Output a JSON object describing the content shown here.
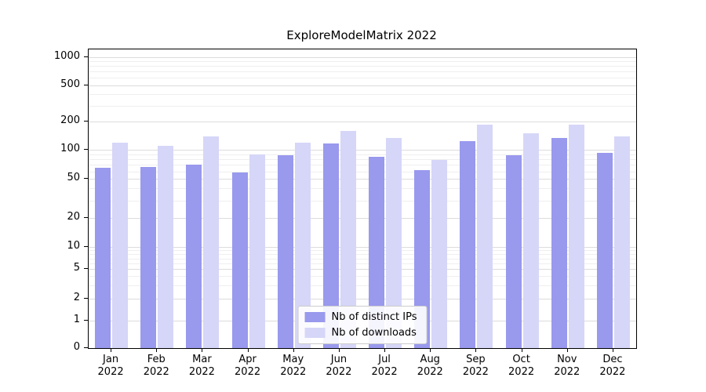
{
  "chart_data": {
    "type": "bar",
    "title": "ExploreModelMatrix 2022",
    "categories": [
      "Jan",
      "Feb",
      "Mar",
      "Apr",
      "May",
      "Jun",
      "Jul",
      "Aug",
      "Sep",
      "Oct",
      "Nov",
      "Dec"
    ],
    "x_tick_second_line": "2022",
    "series": [
      {
        "name": "Nb of distinct IPs",
        "color": "#9999ee",
        "values": [
          65,
          66,
          70,
          58,
          88,
          118,
          85,
          62,
          125,
          88,
          135,
          93
        ]
      },
      {
        "name": "Nb of downloads",
        "color": "#d6d6f8",
        "values": [
          120,
          110,
          140,
          90,
          120,
          160,
          135,
          78,
          185,
          150,
          188,
          138
        ]
      }
    ],
    "y_axis": {
      "scale": "symlog",
      "ticks": [
        0,
        1,
        2,
        5,
        10,
        20,
        50,
        100,
        200,
        500,
        1000
      ],
      "range": [
        0,
        1000
      ]
    },
    "legend": {
      "position": "lower center",
      "entries": [
        "Nb of distinct IPs",
        "Nb of downloads"
      ]
    },
    "grid": {
      "enabled": true,
      "major_color": "#dcdcdc",
      "minor_color": "#efefef"
    },
    "background": "#ffffff"
  }
}
